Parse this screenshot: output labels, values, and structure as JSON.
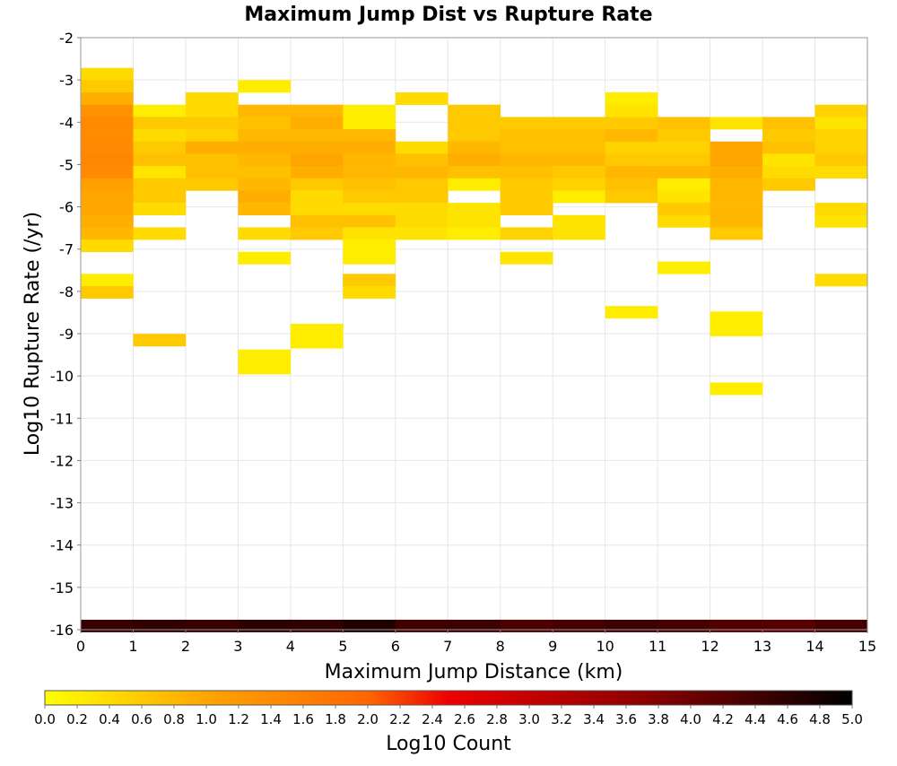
{
  "chart_data": {
    "type": "heatmap",
    "title": "Maximum Jump Dist vs Rupture Rate",
    "xlabel": "Maximum Jump Distance (km)",
    "ylabel": "Log10 Rupture Rate (/yr)",
    "xlim": [
      0,
      15
    ],
    "ylim": [
      -16,
      -2
    ],
    "x_ticks": [
      "0",
      "1",
      "2",
      "3",
      "4",
      "5",
      "6",
      "7",
      "8",
      "9",
      "10",
      "11",
      "12",
      "13",
      "14",
      "15"
    ],
    "y_ticks": [
      "-2",
      "-3",
      "-4",
      "-5",
      "-6",
      "-7",
      "-8",
      "-9",
      "-10",
      "-11",
      "-12",
      "-13",
      "-14",
      "-15",
      "-16"
    ],
    "grid": true,
    "bin_width_x": 1,
    "bin_height_y": 0.29,
    "colorbar": {
      "label": "Log10 Count",
      "range": [
        0,
        5
      ],
      "ticks": [
        "0.0",
        "0.2",
        "0.4",
        "0.6",
        "0.8",
        "1.0",
        "1.2",
        "1.4",
        "1.6",
        "1.8",
        "2.0",
        "2.2",
        "2.4",
        "2.6",
        "2.8",
        "3.0",
        "3.2",
        "3.4",
        "3.6",
        "3.8",
        "4.0",
        "4.2",
        "4.4",
        "4.6",
        "4.8",
        "5.0"
      ],
      "colors": [
        "#ffff00",
        "#ffa500",
        "#ff6600",
        "#ee0000",
        "#880000",
        "#000000"
      ]
    },
    "cells": [
      [
        0,
        -2.86,
        0.4
      ],
      [
        0,
        -3.15,
        0.6
      ],
      [
        0,
        -3.44,
        0.9
      ],
      [
        0,
        -3.73,
        1.3
      ],
      [
        0,
        -4.02,
        1.45
      ],
      [
        0,
        -4.31,
        1.4
      ],
      [
        0,
        -4.6,
        1.45
      ],
      [
        0,
        -4.89,
        1.5
      ],
      [
        0,
        -5.18,
        1.4
      ],
      [
        0,
        -5.47,
        1.1
      ],
      [
        0,
        -5.76,
        1.0
      ],
      [
        0,
        -6.05,
        1.0
      ],
      [
        0,
        -6.34,
        0.9
      ],
      [
        0,
        -6.63,
        0.8
      ],
      [
        0,
        -6.92,
        0.4
      ],
      [
        0,
        -7.73,
        0.2
      ],
      [
        0,
        -8.02,
        0.6
      ],
      [
        1,
        -3.73,
        0.2
      ],
      [
        1,
        -4.02,
        0.6
      ],
      [
        1,
        -4.31,
        0.4
      ],
      [
        1,
        -4.6,
        0.6
      ],
      [
        1,
        -4.89,
        0.7
      ],
      [
        1,
        -5.18,
        0.3
      ],
      [
        1,
        -5.47,
        0.6
      ],
      [
        1,
        -5.76,
        0.6
      ],
      [
        1,
        -6.05,
        0.4
      ],
      [
        1,
        -6.63,
        0.4
      ],
      [
        1,
        -9.15,
        0.6
      ],
      [
        2,
        -3.44,
        0.4
      ],
      [
        2,
        -3.73,
        0.4
      ],
      [
        2,
        -4.02,
        0.6
      ],
      [
        2,
        -4.31,
        0.5
      ],
      [
        2,
        -4.6,
        0.9
      ],
      [
        2,
        -4.89,
        0.7
      ],
      [
        2,
        -5.18,
        0.7
      ],
      [
        2,
        -5.47,
        0.6
      ],
      [
        3,
        -3.15,
        0.2
      ],
      [
        3,
        -3.73,
        0.8
      ],
      [
        3,
        -4.02,
        0.7
      ],
      [
        3,
        -4.31,
        0.8
      ],
      [
        3,
        -4.6,
        0.9
      ],
      [
        3,
        -4.89,
        0.8
      ],
      [
        3,
        -5.18,
        0.7
      ],
      [
        3,
        -5.47,
        0.8
      ],
      [
        3,
        -5.76,
        0.9
      ],
      [
        3,
        -6.05,
        0.8
      ],
      [
        3,
        -6.63,
        0.4
      ],
      [
        3,
        -7.21,
        0.2
      ],
      [
        3,
        -9.52,
        0.2
      ],
      [
        3,
        -9.81,
        0.2
      ],
      [
        4,
        -3.73,
        0.8
      ],
      [
        4,
        -4.02,
        0.9
      ],
      [
        4,
        -4.31,
        0.8
      ],
      [
        4,
        -4.6,
        0.9
      ],
      [
        4,
        -4.89,
        1.0
      ],
      [
        4,
        -5.18,
        0.9
      ],
      [
        4,
        -5.47,
        0.6
      ],
      [
        4,
        -5.76,
        0.4
      ],
      [
        4,
        -6.05,
        0.4
      ],
      [
        4,
        -6.34,
        0.7
      ],
      [
        4,
        -6.63,
        0.6
      ],
      [
        4,
        -8.91,
        0.2
      ],
      [
        4,
        -9.2,
        0.2
      ],
      [
        5,
        -3.73,
        0.2
      ],
      [
        5,
        -4.02,
        0.2
      ],
      [
        5,
        -4.31,
        0.8
      ],
      [
        5,
        -4.6,
        0.9
      ],
      [
        5,
        -4.89,
        0.8
      ],
      [
        5,
        -5.18,
        0.8
      ],
      [
        5,
        -5.47,
        0.7
      ],
      [
        5,
        -5.76,
        0.6
      ],
      [
        5,
        -6.05,
        0.4
      ],
      [
        5,
        -6.34,
        0.7
      ],
      [
        5,
        -6.63,
        0.3
      ],
      [
        5,
        -6.92,
        0.2
      ],
      [
        5,
        -7.21,
        0.2
      ],
      [
        5,
        -7.73,
        0.6
      ],
      [
        5,
        -8.02,
        0.4
      ],
      [
        6,
        -3.44,
        0.4
      ],
      [
        6,
        -4.6,
        0.4
      ],
      [
        6,
        -4.89,
        0.7
      ],
      [
        6,
        -5.18,
        0.8
      ],
      [
        6,
        -5.47,
        0.6
      ],
      [
        6,
        -5.76,
        0.6
      ],
      [
        6,
        -6.05,
        0.4
      ],
      [
        6,
        -6.34,
        0.4
      ],
      [
        6,
        -6.63,
        0.3
      ],
      [
        7,
        -3.73,
        0.6
      ],
      [
        7,
        -4.02,
        0.6
      ],
      [
        7,
        -4.31,
        0.6
      ],
      [
        7,
        -4.6,
        0.8
      ],
      [
        7,
        -4.89,
        0.9
      ],
      [
        7,
        -5.18,
        0.7
      ],
      [
        7,
        -5.47,
        0.2
      ],
      [
        7,
        -6.05,
        0.3
      ],
      [
        7,
        -6.34,
        0.3
      ],
      [
        7,
        -6.63,
        0.2
      ],
      [
        8,
        -4.02,
        0.6
      ],
      [
        8,
        -4.31,
        0.7
      ],
      [
        8,
        -4.6,
        0.7
      ],
      [
        8,
        -4.89,
        0.8
      ],
      [
        8,
        -5.18,
        0.7
      ],
      [
        8,
        -5.47,
        0.6
      ],
      [
        8,
        -5.76,
        0.6
      ],
      [
        8,
        -6.05,
        0.6
      ],
      [
        8,
        -6.63,
        0.5
      ],
      [
        8,
        -7.21,
        0.3
      ],
      [
        9,
        -4.02,
        0.6
      ],
      [
        9,
        -4.31,
        0.7
      ],
      [
        9,
        -4.6,
        0.7
      ],
      [
        9,
        -4.89,
        0.8
      ],
      [
        9,
        -5.18,
        0.6
      ],
      [
        9,
        -5.47,
        0.5
      ],
      [
        9,
        -5.76,
        0.2
      ],
      [
        9,
        -6.34,
        0.3
      ],
      [
        9,
        -6.63,
        0.3
      ],
      [
        10,
        -3.44,
        0.2
      ],
      [
        10,
        -3.73,
        0.3
      ],
      [
        10,
        -4.02,
        0.6
      ],
      [
        10,
        -4.31,
        0.8
      ],
      [
        10,
        -4.6,
        0.5
      ],
      [
        10,
        -4.89,
        0.6
      ],
      [
        10,
        -5.18,
        0.8
      ],
      [
        10,
        -5.47,
        0.7
      ],
      [
        10,
        -5.76,
        0.6
      ],
      [
        10,
        -8.49,
        0.2
      ],
      [
        11,
        -4.02,
        0.7
      ],
      [
        11,
        -4.31,
        0.6
      ],
      [
        11,
        -4.6,
        0.5
      ],
      [
        11,
        -4.89,
        0.6
      ],
      [
        11,
        -5.18,
        0.8
      ],
      [
        11,
        -5.47,
        0.2
      ],
      [
        11,
        -5.76,
        0.3
      ],
      [
        11,
        -6.05,
        0.6
      ],
      [
        11,
        -6.34,
        0.4
      ],
      [
        11,
        -7.44,
        0.2
      ],
      [
        12,
        -4.02,
        0.3
      ],
      [
        12,
        -4.6,
        1.0
      ],
      [
        12,
        -4.89,
        1.0
      ],
      [
        12,
        -5.18,
        0.9
      ],
      [
        12,
        -5.47,
        0.8
      ],
      [
        12,
        -5.76,
        0.8
      ],
      [
        12,
        -6.05,
        0.8
      ],
      [
        12,
        -6.34,
        0.8
      ],
      [
        12,
        -6.63,
        0.6
      ],
      [
        12,
        -8.62,
        0.2
      ],
      [
        12,
        -8.91,
        0.2
      ],
      [
        12,
        -10.3,
        0.2
      ],
      [
        13,
        -4.02,
        0.7
      ],
      [
        13,
        -4.31,
        0.6
      ],
      [
        13,
        -4.6,
        0.7
      ],
      [
        13,
        -4.89,
        0.3
      ],
      [
        13,
        -5.18,
        0.4
      ],
      [
        13,
        -5.47,
        0.6
      ],
      [
        14,
        -3.73,
        0.5
      ],
      [
        14,
        -4.02,
        0.3
      ],
      [
        14,
        -4.31,
        0.5
      ],
      [
        14,
        -4.6,
        0.5
      ],
      [
        14,
        -4.89,
        0.6
      ],
      [
        14,
        -5.18,
        0.4
      ],
      [
        14,
        -6.05,
        0.4
      ],
      [
        14,
        -6.34,
        0.3
      ],
      [
        14,
        -7.73,
        0.4
      ],
      [
        0,
        -15.91,
        4.5
      ],
      [
        1,
        -15.91,
        4.55
      ],
      [
        2,
        -15.91,
        4.5
      ],
      [
        3,
        -15.91,
        4.6
      ],
      [
        4,
        -15.91,
        4.55
      ],
      [
        5,
        -15.91,
        4.7
      ],
      [
        6,
        -15.91,
        4.4
      ],
      [
        7,
        -15.91,
        4.45
      ],
      [
        8,
        -15.91,
        4.3
      ],
      [
        9,
        -15.91,
        4.35
      ],
      [
        10,
        -15.91,
        4.45
      ],
      [
        11,
        -15.91,
        4.35
      ],
      [
        12,
        -15.91,
        4.25
      ],
      [
        13,
        -15.91,
        4.2
      ],
      [
        14,
        -15.91,
        4.35
      ]
    ]
  }
}
